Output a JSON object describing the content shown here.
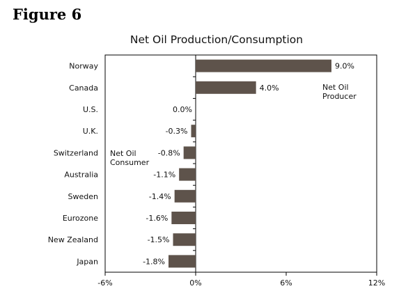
{
  "figure_label": "Figure 6",
  "chart_data": {
    "type": "bar",
    "orientation": "horizontal",
    "title": "Net Oil Production/Consumption",
    "categories": [
      "Norway",
      "Canada",
      "U.S.",
      "U.K.",
      "Switzerland",
      "Australia",
      "Sweden",
      "Eurozone",
      "New Zealand",
      "Japan"
    ],
    "values": [
      9.0,
      4.0,
      0.0,
      -0.3,
      -0.8,
      -1.1,
      -1.4,
      -1.6,
      -1.5,
      -1.8
    ],
    "value_labels": [
      "9.0%",
      "4.0%",
      "0.0%",
      "-0.3%",
      "-0.8%",
      "-1.1%",
      "-1.4%",
      "-1.6%",
      "-1.5%",
      "-1.8%"
    ],
    "xlim": [
      -6,
      12
    ],
    "xticks": [
      -6,
      0,
      6,
      12
    ],
    "xtick_labels": [
      "-6%",
      "0%",
      "6%",
      "12%"
    ],
    "grid": false,
    "bar_color": "#5e534b",
    "annotations": [
      {
        "lines": [
          "Net Oil",
          "Producer"
        ]
      },
      {
        "lines": [
          "Net Oil",
          "Consumer"
        ]
      }
    ]
  }
}
